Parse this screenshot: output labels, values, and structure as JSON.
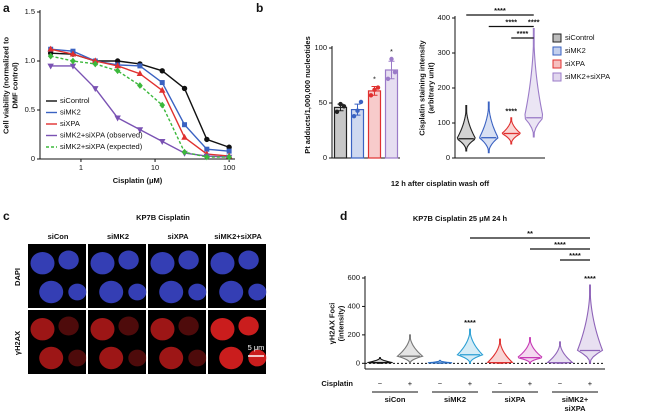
{
  "figure": {
    "panel_labels": [
      "a",
      "b",
      "c",
      "d"
    ]
  },
  "panel_c": {
    "title": "KP7B Cisplatin",
    "columns": [
      "siCon",
      "siMK2",
      "siXPA",
      "siMK2+siXPA"
    ],
    "rows": [
      "DAPI",
      "γH2AX"
    ],
    "scale_bar": "5 μm"
  },
  "chart_data": [
    {
      "type": "line",
      "x_label": "Cisplatin (μM)",
      "y_label": [
        "Cell viability (normalized to",
        "DMF control)"
      ],
      "log_x": true,
      "x": [
        0.39,
        0.78,
        1.56,
        3.125,
        6.25,
        12.5,
        25,
        50,
        100
      ],
      "xlim": [
        0.28,
        120
      ],
      "xticks": [
        1,
        10,
        100
      ],
      "ylim": [
        0,
        1.5
      ],
      "yticks": [
        0,
        0.5,
        {
          "value": 1,
          "label": "1.0"
        },
        1.5
      ],
      "legend_position": "lower left",
      "series": [
        {
          "name": "siControl",
          "color": "#111111",
          "marker": "circle",
          "dash": false,
          "values": [
            1.08,
            1.07,
            1.0,
            1.0,
            0.97,
            0.9,
            0.72,
            0.2,
            0.12
          ]
        },
        {
          "name": "siMK2",
          "color": "#3a62c2",
          "marker": "square",
          "dash": false,
          "values": [
            1.12,
            1.1,
            1.0,
            0.96,
            0.95,
            0.78,
            0.35,
            0.1,
            0.08
          ]
        },
        {
          "name": "siXPA",
          "color": "#e0302f",
          "marker": "triangle",
          "dash": false,
          "values": [
            1.12,
            1.07,
            1.0,
            0.95,
            0.87,
            0.7,
            0.22,
            0.05,
            0.03
          ]
        },
        {
          "name": "siMK2+siXPA (observed)",
          "color": "#7a52b3",
          "marker": "triangle-down",
          "dash": false,
          "values": [
            0.95,
            0.95,
            0.72,
            0.42,
            0.3,
            0.18,
            0.06,
            0.03,
            0.02
          ]
        },
        {
          "name": "siMK2+siXPA (expected)",
          "color": "#3cb83c",
          "marker": "diamond",
          "dash": true,
          "values": [
            1.05,
            1.0,
            0.97,
            0.9,
            0.75,
            0.55,
            0.07,
            0.02,
            0.02
          ]
        }
      ]
    },
    {
      "type": "bar",
      "y_label": "Pt adducts/1,000,000 nucleotides",
      "x_label": "12 h after cisplatin wash off",
      "values": [
        46,
        44,
        61,
        80
      ],
      "errors": [
        3,
        5,
        4,
        8
      ],
      "points": [
        [
          42,
          49,
          47
        ],
        [
          38,
          43,
          51
        ],
        [
          57,
          62,
          64
        ],
        [
          72,
          90,
          78
        ]
      ],
      "colors": [
        "#222222",
        "#3a62c2",
        "#e0302f",
        "#9b7bc8"
      ],
      "annotations": [
        null,
        null,
        "*",
        "*"
      ],
      "ylim": [
        0,
        100
      ],
      "yticks": [
        0,
        50,
        100
      ]
    },
    {
      "type": "violin",
      "y_label": [
        "Cisplatin staining intensity",
        "(arbitrary unit)"
      ],
      "legend_position": "upper right",
      "series": [
        {
          "name": "siControl",
          "color": "#222222",
          "median": 55,
          "min": 20,
          "max": 150
        },
        {
          "name": "siMK2",
          "color": "#3a62c2",
          "median": 58,
          "min": 15,
          "max": 160
        },
        {
          "name": "siXPA",
          "color": "#e0302f",
          "median": 70,
          "min": 40,
          "max": 115
        },
        {
          "name": "siMK2+siXPA",
          "color": "#9b7bc8",
          "median": 115,
          "min": 60,
          "max": 370
        }
      ],
      "annotations": [
        {
          "index": 2,
          "text": "****"
        },
        {
          "index": 3,
          "text": "****"
        }
      ],
      "brackets": [
        {
          "from": 0,
          "to": 3,
          "text": "****"
        },
        {
          "from": 1,
          "to": 3,
          "text": "****"
        },
        {
          "from": 2,
          "to": 3,
          "text": "****"
        }
      ],
      "ylim": [
        0,
        400
      ],
      "yticks": [
        0,
        100,
        200,
        300,
        400
      ]
    },
    {
      "type": "violin",
      "title": "KP7B Cisplatin 25 μM 24 h",
      "y_label": [
        "γH2AX Foci",
        "(intensity)"
      ],
      "x_label": "Cisplatin",
      "categories": [
        "−",
        "+",
        "−",
        "+",
        "−",
        "+",
        "−",
        "+"
      ],
      "groups": [
        [
          "siCon"
        ],
        [
          "siMK2"
        ],
        [
          "siXPA"
        ],
        [
          "siMK2+",
          "siXPA"
        ]
      ],
      "series": [
        {
          "color": "#111111",
          "median": 5,
          "min": 0,
          "max": 40
        },
        {
          "color": "#777777",
          "median": 50,
          "min": 0,
          "max": 200
        },
        {
          "color": "#2b6fc4",
          "median": 3,
          "min": 0,
          "max": 20
        },
        {
          "color": "#2b9fd4",
          "median": 60,
          "min": 0,
          "max": 240
        },
        {
          "color": "#e0302f",
          "median": 5,
          "min": 0,
          "max": 170
        },
        {
          "color": "#c63ab5",
          "median": 40,
          "min": 0,
          "max": 180
        },
        {
          "color": "#8e63b8",
          "median": 5,
          "min": 0,
          "max": 150
        },
        {
          "color": "#8e63b8",
          "median": 90,
          "min": 0,
          "max": 550
        }
      ],
      "annotations": [
        {
          "index": 3,
          "text": "****"
        },
        {
          "index": 7,
          "text": "****"
        }
      ],
      "brackets": [
        {
          "from": 3,
          "to": 7,
          "text": "**"
        },
        {
          "from": 5,
          "to": 7,
          "text": "****"
        },
        {
          "from": 6,
          "to": 7,
          "text": "****"
        }
      ],
      "ylim": [
        -40,
        600
      ],
      "yticks": [
        0,
        200,
        400,
        600
      ],
      "zero_line": true
    }
  ]
}
